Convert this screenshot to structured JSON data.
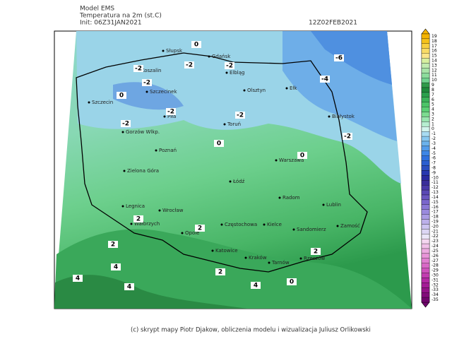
{
  "header": {
    "model": "Model EMS",
    "variable": "Temperatura na 2m (st.C)",
    "init": "Init: 06Z31JAN2021",
    "valid": "12Z02FEB2021"
  },
  "cities": [
    "Słupsk",
    "Koszalin",
    "Gdańsk",
    "Elbląg",
    "Olsztyn",
    "Ełk",
    "Szczecin",
    "Szczecinek",
    "Piła",
    "Toruń",
    "Białystok",
    "Gorzów Wlkp.",
    "Poznań",
    "Zielona Góra",
    "Warszawa",
    "Łódź",
    "Radom",
    "Lublin",
    "Legnica",
    "Wrocław",
    "Wałbrzych",
    "Opole",
    "Częstochowa",
    "Kielce",
    "Sandomierz",
    "Zamość",
    "Katowice",
    "Kraków",
    "Tarnów",
    "Rzeszów"
  ],
  "contour_labels": [
    0,
    -6,
    -2,
    -2,
    -2,
    -2,
    -4,
    0,
    -2,
    -2,
    -2,
    -2,
    0,
    0,
    2,
    2,
    2,
    2,
    2,
    4,
    4,
    4,
    4,
    0
  ],
  "colorbar": {
    "labels": [
      19,
      18,
      17,
      16,
      15,
      14,
      13,
      12,
      11,
      10,
      9,
      8,
      7,
      6,
      5,
      4,
      3,
      2,
      1,
      0,
      -1,
      -2,
      -3,
      -4,
      -5,
      -6,
      -7,
      -8,
      -9,
      -10,
      -11,
      -12,
      -13,
      -14,
      -15,
      -16,
      -17,
      -18,
      -19,
      -20,
      -21,
      -22,
      -23,
      -24,
      -25,
      -26,
      -27,
      -28,
      -29,
      -30,
      -31,
      -32,
      -33,
      -34,
      -35
    ],
    "colors": [
      "#f4b400",
      "#f6c21a",
      "#f8d040",
      "#f9dc66",
      "#fae68a",
      "#d8f0a0",
      "#c2ebb0",
      "#a8e4a8",
      "#8cdc9c",
      "#6fd28e",
      "#2f9a4a",
      "#1e8a3c",
      "#2aa04c",
      "#3bb35a",
      "#4cc468",
      "#5cd076",
      "#7cdc90",
      "#9ae6b0",
      "#b6eed0",
      "#d2f4ec",
      "#a8dcf2",
      "#88c8f0",
      "#6cb2ec",
      "#549cea",
      "#3e86e6",
      "#2f70de",
      "#2a5ed0",
      "#2a4ec0",
      "#2838b0",
      "#2a2aa0",
      "#3a2e9a",
      "#4a3aa8",
      "#5a48b4",
      "#6a56c0",
      "#7a66cc",
      "#8a78d6",
      "#9a8ade",
      "#aa9ce4",
      "#bcb0ea",
      "#ccc4f0",
      "#dcd6f4",
      "#eae6f8",
      "#f4d6f0",
      "#f0c0e8",
      "#ecaae0",
      "#e894d8",
      "#e07ed0",
      "#d868c6",
      "#ce52bc",
      "#c23cb0",
      "#b42aa4",
      "#a41c96",
      "#941488",
      "#820c7a",
      "#70066c"
    ]
  },
  "footer": "(c) skrypt mapy Piotr Djakow, obliczenia modelu i wizualizacja Juliusz Orlikowski"
}
